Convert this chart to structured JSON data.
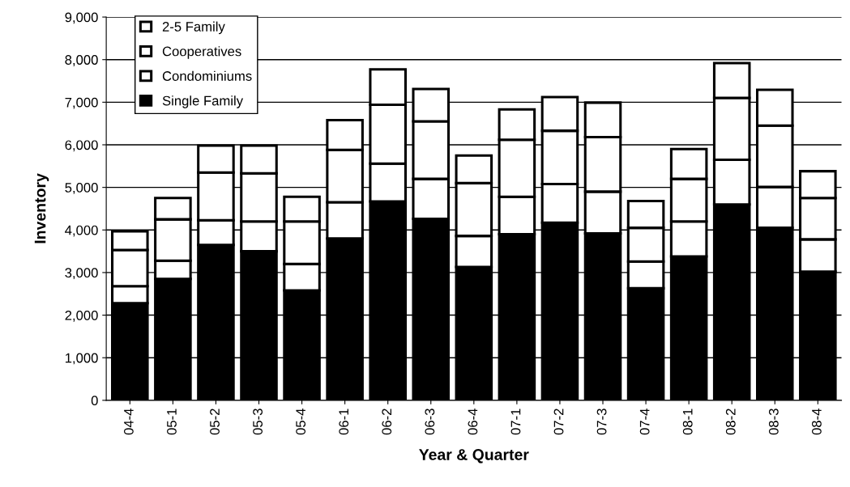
{
  "chart_data": {
    "type": "bar",
    "stacked": true,
    "xlabel": "Year & Quarter",
    "ylabel": "Inventory",
    "categories": [
      "04-4",
      "05-1",
      "05-2",
      "05-3",
      "05-4",
      "06-1",
      "06-2",
      "06-3",
      "06-4",
      "07-1",
      "07-2",
      "07-3",
      "07-4",
      "08-1",
      "08-2",
      "08-3",
      "08-4"
    ],
    "series": [
      {
        "name": "Single Family",
        "color": "#000000",
        "values": [
          2280,
          2850,
          3650,
          3500,
          2580,
          3800,
          4670,
          4260,
          3130,
          3900,
          4170,
          3920,
          2630,
          3380,
          4600,
          4050,
          3020
        ]
      },
      {
        "name": "Condominiums",
        "color": "#ffffff",
        "values": [
          400,
          430,
          580,
          700,
          620,
          850,
          890,
          940,
          730,
          880,
          910,
          980,
          630,
          820,
          1050,
          960,
          760
        ]
      },
      {
        "name": "Cooperatives",
        "color": "#ffffff",
        "values": [
          850,
          970,
          1120,
          1130,
          1000,
          1230,
          1380,
          1350,
          1240,
          1340,
          1250,
          1280,
          790,
          1000,
          1450,
          1440,
          970
        ]
      },
      {
        "name": "2-5 Family",
        "color": "#ffffff",
        "values": [
          440,
          500,
          630,
          650,
          580,
          700,
          830,
          760,
          650,
          710,
          790,
          810,
          630,
          700,
          820,
          840,
          630
        ]
      }
    ],
    "ylim": [
      0,
      9000
    ],
    "yticks": [
      {
        "value": 0,
        "label": "0"
      },
      {
        "value": 1000,
        "label": "1,000"
      },
      {
        "value": 2000,
        "label": "2,000"
      },
      {
        "value": 3000,
        "label": "3,000"
      },
      {
        "value": 4000,
        "label": "4,000"
      },
      {
        "value": 5000,
        "label": "5,000"
      },
      {
        "value": 6000,
        "label": "6,000"
      },
      {
        "value": 7000,
        "label": "7,000"
      },
      {
        "value": 8000,
        "label": "8,000"
      },
      {
        "value": 9000,
        "label": "9,000"
      }
    ],
    "grid": "y",
    "legend": "top left"
  }
}
